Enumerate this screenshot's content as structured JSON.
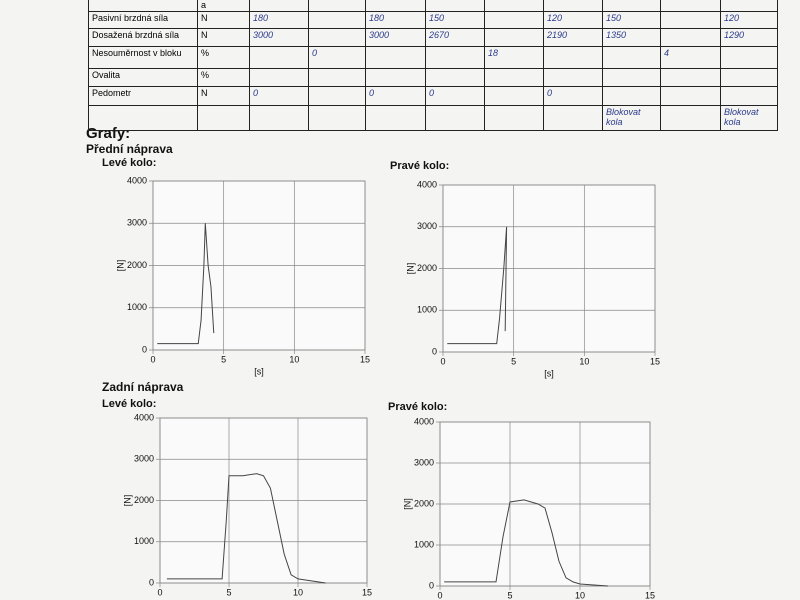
{
  "table": {
    "rows": [
      [
        null,
        "a",
        null,
        null,
        null,
        null,
        null,
        null,
        null,
        null,
        null
      ],
      [
        "Pasivní brzdná síla",
        "N",
        180,
        null,
        180,
        150,
        null,
        120,
        150,
        null,
        120
      ],
      [
        "Dosažená brzdná síla",
        "N",
        3000,
        null,
        3000,
        2670,
        null,
        2190,
        1350,
        null,
        1290
      ],
      [
        "Nesouměrnost v bloku",
        "%",
        null,
        0,
        null,
        null,
        18,
        null,
        null,
        4,
        null
      ],
      [
        "Ovalita",
        "%",
        null,
        null,
        null,
        null,
        null,
        null,
        null,
        null,
        null
      ],
      [
        "Pedometr",
        "N",
        0,
        null,
        0,
        0,
        null,
        0,
        null,
        null,
        null
      ],
      [
        null,
        null,
        null,
        null,
        null,
        null,
        null,
        null,
        "Blokovat kola",
        null,
        "Blokovat kola"
      ]
    ]
  },
  "heading": "Grafy:",
  "sections": [
    {
      "title": "Přední náprava",
      "charts": [
        {
          "type": "line",
          "title": "Levé kolo:",
          "ylabel": "[N]",
          "xlabel": "[s]",
          "xlim": [
            0,
            15
          ],
          "ylim": [
            0,
            4000
          ],
          "xticks": [
            0,
            5,
            10,
            15
          ],
          "yticks": [
            0,
            1000,
            2000,
            3000,
            4000
          ],
          "color": "#444",
          "x": [
            0.3,
            3.2,
            3.4,
            3.6,
            3.7,
            3.9,
            4.1,
            4.3
          ],
          "y": [
            150,
            150,
            700,
            2000,
            3000,
            2000,
            1500,
            400
          ]
        },
        {
          "type": "line",
          "title": "Pravé kolo:",
          "ylabel": "[N]",
          "xlabel": "[s]",
          "xlim": [
            0,
            15
          ],
          "ylim": [
            0,
            4000
          ],
          "xticks": [
            0,
            5,
            10,
            15
          ],
          "yticks": [
            0,
            1000,
            2000,
            3000,
            4000
          ],
          "color": "#444",
          "x": [
            0.3,
            3.8,
            4.0,
            4.3,
            4.5,
            4.4
          ],
          "y": [
            200,
            200,
            800,
            2000,
            3000,
            500
          ]
        }
      ]
    },
    {
      "title": "Zadní náprava",
      "charts": [
        {
          "type": "line",
          "title": "Levé kolo:",
          "ylabel": "[N]",
          "xlim": [
            0,
            15
          ],
          "ylim": [
            0,
            4000
          ],
          "xticks": [
            0,
            5,
            10,
            15
          ],
          "yticks": [
            0,
            1000,
            2000,
            3000,
            4000
          ],
          "color": "#444",
          "x": [
            0.5,
            4.5,
            4.8,
            5,
            6,
            7,
            7.5,
            8,
            8.5,
            9,
            9.5,
            10,
            12
          ],
          "y": [
            100,
            100,
            1500,
            2600,
            2600,
            2650,
            2600,
            2300,
            1500,
            700,
            200,
            100,
            0
          ]
        },
        {
          "type": "line",
          "title": "Pravé kolo:",
          "ylabel": "[N]",
          "xlim": [
            0,
            15
          ],
          "ylim": [
            0,
            4000
          ],
          "xticks": [
            0,
            5,
            10,
            15
          ],
          "yticks": [
            0,
            1000,
            2000,
            3000,
            4000
          ],
          "color": "#444",
          "x": [
            0.3,
            4.0,
            4.5,
            5,
            6,
            7,
            7.5,
            8,
            8.5,
            9,
            9.5,
            10,
            12
          ],
          "y": [
            100,
            100,
            1200,
            2050,
            2100,
            2000,
            1900,
            1300,
            600,
            200,
            100,
            50,
            0
          ]
        }
      ]
    }
  ]
}
